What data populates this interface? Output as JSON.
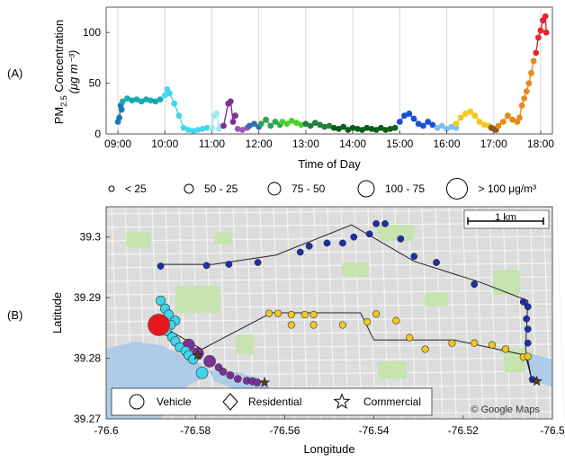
{
  "panel_a_label": "(A)",
  "panel_b_label": "(B)",
  "chart_data": [
    {
      "type": "scatter",
      "xlabel": "Time of Day",
      "ylabel_main": "PM",
      "ylabel_sub": "2.5",
      "ylabel_rest": " Concentration",
      "ylabel_units": "(μg m⁻³)",
      "xlim": [
        8.75,
        18.25
      ],
      "ylim": [
        0,
        125
      ],
      "x_ticks": [
        9,
        10,
        11,
        12,
        13,
        14,
        15,
        16,
        17,
        18
      ],
      "x_tick_labels": [
        "09:00",
        "10:00",
        "11:00",
        "12:00",
        "13:00",
        "14:00",
        "15:00",
        "16:00",
        "17:00",
        "18:00"
      ],
      "y_ticks": [
        0,
        50,
        100
      ],
      "y_tick_labels": [
        "0",
        "50",
        "100"
      ],
      "grid": "vertical",
      "series": [
        {
          "color": "#1f78b4",
          "points": [
            [
              9.0,
              12
            ],
            [
              9.03,
              16
            ],
            [
              9.06,
              28
            ],
            [
              9.08,
              24
            ]
          ]
        },
        {
          "color": "#17a9b8",
          "points": [
            [
              9.1,
              32
            ],
            [
              9.2,
              35
            ],
            [
              9.3,
              33
            ],
            [
              9.4,
              34
            ],
            [
              9.5,
              32
            ],
            [
              9.6,
              34
            ],
            [
              9.7,
              33
            ],
            [
              9.8,
              32
            ],
            [
              9.9,
              34
            ]
          ]
        },
        {
          "color": "#45d6ec",
          "points": [
            [
              10.0,
              38
            ],
            [
              10.05,
              44
            ],
            [
              10.1,
              40
            ],
            [
              10.2,
              30
            ],
            [
              10.3,
              18
            ],
            [
              10.4,
              6
            ],
            [
              10.5,
              4
            ],
            [
              10.6,
              3
            ],
            [
              10.7,
              4
            ],
            [
              10.8,
              5
            ],
            [
              10.9,
              6
            ]
          ]
        },
        {
          "color": "#a8e6f0",
          "points": [
            [
              11.0,
              6
            ],
            [
              11.05,
              18
            ],
            [
              11.1,
              20
            ],
            [
              11.15,
              5
            ],
            [
              11.2,
              8
            ]
          ]
        },
        {
          "color": "#7b2f9a",
          "points": [
            [
              11.25,
              8
            ],
            [
              11.35,
              30
            ],
            [
              11.4,
              32
            ],
            [
              11.45,
              12
            ],
            [
              11.5,
              18
            ]
          ]
        },
        {
          "color": "#9b59b6",
          "points": [
            [
              11.55,
              5
            ],
            [
              11.65,
              4
            ],
            [
              11.75,
              6
            ]
          ]
        },
        {
          "color": "#2f6fb0",
          "points": [
            [
              11.8,
              8
            ],
            [
              11.9,
              10
            ],
            [
              12.0,
              7
            ]
          ]
        },
        {
          "color": "#31a354",
          "points": [
            [
              12.05,
              10
            ],
            [
              12.15,
              14
            ],
            [
              12.25,
              8
            ],
            [
              12.35,
              12
            ],
            [
              12.45,
              9
            ]
          ]
        },
        {
          "color": "#4cd12e",
          "points": [
            [
              12.5,
              12
            ],
            [
              12.6,
              10
            ],
            [
              12.7,
              13
            ],
            [
              12.8,
              11
            ],
            [
              12.9,
              9
            ]
          ]
        },
        {
          "color": "#23803a",
          "points": [
            [
              13.0,
              10
            ],
            [
              13.1,
              8
            ],
            [
              13.2,
              11
            ],
            [
              13.3,
              9
            ],
            [
              13.4,
              7
            ],
            [
              13.5,
              8
            ]
          ]
        },
        {
          "color": "#0f5c1a",
          "points": [
            [
              13.6,
              6
            ],
            [
              13.7,
              5
            ],
            [
              13.8,
              7
            ],
            [
              13.9,
              4
            ],
            [
              14.0,
              6
            ],
            [
              14.1,
              5
            ],
            [
              14.2,
              4
            ],
            [
              14.3,
              6
            ],
            [
              14.4,
              5
            ],
            [
              14.5,
              4
            ],
            [
              14.6,
              6
            ],
            [
              14.7,
              4
            ],
            [
              14.8,
              5
            ],
            [
              14.9,
              6
            ]
          ]
        },
        {
          "color": "#1a4fd6",
          "points": [
            [
              15.0,
              12
            ],
            [
              15.1,
              18
            ],
            [
              15.2,
              20
            ],
            [
              15.3,
              15
            ],
            [
              15.4,
              10
            ],
            [
              15.5,
              8
            ],
            [
              15.6,
              12
            ],
            [
              15.7,
              9
            ]
          ]
        },
        {
          "color": "#7dbef2",
          "points": [
            [
              15.8,
              6
            ],
            [
              15.9,
              8
            ],
            [
              16.0,
              5
            ],
            [
              16.1,
              7
            ],
            [
              16.2,
              6
            ]
          ]
        },
        {
          "color": "#f2c81e",
          "points": [
            [
              16.2,
              10
            ],
            [
              16.3,
              16
            ],
            [
              16.4,
              20
            ],
            [
              16.5,
              22
            ],
            [
              16.6,
              18
            ],
            [
              16.7,
              12
            ],
            [
              16.8,
              9
            ],
            [
              16.9,
              8
            ]
          ]
        },
        {
          "color": "#8b5a1a",
          "points": [
            [
              16.95,
              6
            ],
            [
              17.0,
              5
            ],
            [
              17.05,
              4
            ]
          ]
        },
        {
          "color": "#e8891c",
          "points": [
            [
              17.1,
              8
            ],
            [
              17.2,
              12
            ],
            [
              17.3,
              18
            ],
            [
              17.4,
              14
            ],
            [
              17.5,
              12
            ],
            [
              17.55,
              16
            ],
            [
              17.6,
              28
            ],
            [
              17.65,
              35
            ],
            [
              17.7,
              42
            ],
            [
              17.75,
              50
            ],
            [
              17.8,
              60
            ],
            [
              17.85,
              72
            ]
          ]
        },
        {
          "color": "#e4262b",
          "points": [
            [
              17.9,
              80
            ],
            [
              17.95,
              95
            ],
            [
              18.0,
              102
            ],
            [
              18.05,
              112
            ],
            [
              18.1,
              116
            ],
            [
              18.12,
              100
            ]
          ]
        }
      ]
    },
    {
      "type": "scatter",
      "xlabel": "Longitude",
      "ylabel": "Latitude",
      "xlim": [
        -76.6,
        -76.5
      ],
      "ylim": [
        39.27,
        39.305
      ],
      "x_ticks": [
        -76.6,
        -76.58,
        -76.56,
        -76.54,
        -76.52,
        -76.5
      ],
      "x_tick_labels": [
        "-76.6",
        "-76.58",
        "-76.56",
        "-76.54",
        "-76.52",
        "-76.5"
      ],
      "y_ticks": [
        39.27,
        39.28,
        39.29,
        39.3
      ],
      "y_tick_labels": [
        "39.27",
        "39.28",
        "39.29",
        "39.3"
      ],
      "scale_bar_label": "1 km",
      "attribution": "© Google Maps",
      "size_legend": [
        {
          "label": "< 25"
        },
        {
          "label": "50 - 25"
        },
        {
          "label": "75 - 50"
        },
        {
          "label": "100 - 75"
        },
        {
          "label": "> 100 μg/m³"
        }
      ],
      "marker_legend": [
        {
          "label": "Vehicle",
          "shape": "circle"
        },
        {
          "label": "Residential",
          "shape": "diamond"
        },
        {
          "label": "Commercial",
          "shape": "star"
        }
      ],
      "colors": {
        "blue": "#1f2fa8",
        "yellow": "#f2c81e",
        "cyan": "#3fd5ea",
        "purple": "#7b2f9a",
        "red": "#e8161b",
        "route": "#222222",
        "map": "#dcdcdc",
        "water": "#aecbe8",
        "park": "#c6e3b0"
      },
      "route": [
        [
          -76.5878,
          39.2955
        ],
        [
          -76.576,
          39.2955
        ],
        [
          -76.562,
          39.297
        ],
        [
          -76.545,
          39.302
        ],
        [
          -76.531,
          39.296
        ],
        [
          -76.516,
          39.2925
        ],
        [
          -76.5055,
          39.2895
        ],
        [
          -76.506,
          39.2815
        ],
        [
          -76.5045,
          39.276
        ],
        [
          -76.506,
          39.2805
        ],
        [
          -76.522,
          39.283
        ],
        [
          -76.54,
          39.283
        ],
        [
          -76.543,
          39.2875
        ],
        [
          -76.555,
          39.2875
        ],
        [
          -76.563,
          39.2875
        ],
        [
          -76.5785,
          39.2815
        ],
        [
          -76.588,
          39.2855
        ]
      ],
      "blue_points": [
        [
          -76.5878,
          39.2952
        ],
        [
          -76.5775,
          39.2953
        ],
        [
          -76.5725,
          39.2955
        ],
        [
          -76.566,
          39.2958
        ],
        [
          -76.5565,
          39.2975
        ],
        [
          -76.5545,
          39.2985
        ],
        [
          -76.5505,
          39.299
        ],
        [
          -76.547,
          39.299
        ],
        [
          -76.5445,
          39.3
        ],
        [
          -76.541,
          39.3005
        ],
        [
          -76.5395,
          39.3022
        ],
        [
          -76.5375,
          39.3022
        ],
        [
          -76.534,
          39.2997
        ],
        [
          -76.531,
          39.2968
        ],
        [
          -76.526,
          39.2958
        ],
        [
          -76.5175,
          39.2922
        ],
        [
          -76.5065,
          39.2893
        ],
        [
          -76.5055,
          39.2885
        ],
        [
          -76.5058,
          39.2865
        ],
        [
          -76.5055,
          39.2848
        ],
        [
          -76.5055,
          39.2825
        ],
        [
          -76.5045,
          39.2765
        ]
      ],
      "yellow_points": [
        [
          -76.5535,
          39.2872
        ],
        [
          -76.5555,
          39.2872
        ],
        [
          -76.5585,
          39.2872
        ],
        [
          -76.5615,
          39.2874
        ],
        [
          -76.5635,
          39.2874
        ],
        [
          -76.5585,
          39.2855
        ],
        [
          -76.5535,
          39.2855
        ],
        [
          -76.547,
          39.2855
        ],
        [
          -76.5415,
          39.286
        ],
        [
          -76.5395,
          39.2873
        ],
        [
          -76.535,
          39.2862
        ],
        [
          -76.532,
          39.2834
        ],
        [
          -76.5285,
          39.2815
        ],
        [
          -76.5225,
          39.2825
        ],
        [
          -76.5175,
          39.2825
        ],
        [
          -76.5135,
          39.2822
        ],
        [
          -76.5105,
          39.2815
        ],
        [
          -76.5065,
          39.2802
        ],
        [
          -76.5055,
          39.2803
        ]
      ],
      "cyan_points": [
        [
          -76.5878,
          39.2895
        ],
        [
          -76.5868,
          39.2882
        ],
        [
          -76.586,
          39.2872
        ],
        [
          -76.5845,
          39.2862
        ],
        [
          -76.5855,
          39.2855
        ],
        [
          -76.5865,
          39.2845
        ],
        [
          -76.5852,
          39.2835
        ],
        [
          -76.5845,
          39.2828
        ],
        [
          -76.5835,
          39.2818
        ],
        [
          -76.5822,
          39.2812
        ],
        [
          -76.5815,
          39.2805
        ],
        [
          -76.5805,
          39.2798
        ],
        [
          -76.5785,
          39.2776
        ]
      ],
      "purple_points": [
        [
          -76.5815,
          39.2822
        ],
        [
          -76.5795,
          39.2808
        ],
        [
          -76.5768,
          39.2795
        ],
        [
          -76.5748,
          39.2785
        ],
        [
          -76.5738,
          39.2778
        ],
        [
          -76.5722,
          39.2772
        ],
        [
          -76.5705,
          39.2766
        ],
        [
          -76.5685,
          39.2763
        ],
        [
          -76.5672,
          39.2762
        ],
        [
          -76.5662,
          39.276
        ]
      ],
      "red_points": [
        [
          -76.5882,
          39.2855
        ]
      ],
      "star_points": [
        [
          -76.5795,
          39.2805
        ],
        [
          -76.5645,
          39.276
        ],
        [
          -76.5035,
          39.2762
        ]
      ],
      "marker_legend_entries": 3
    }
  ]
}
